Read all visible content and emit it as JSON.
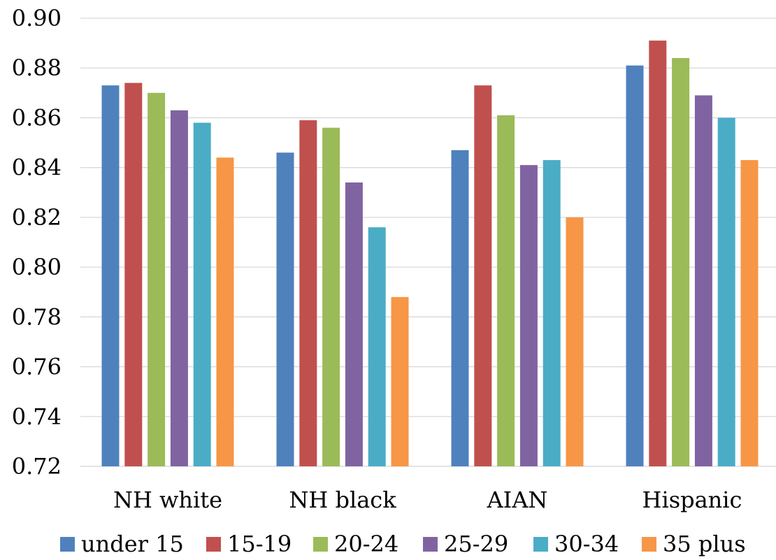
{
  "chart_data": {
    "type": "bar",
    "title": "",
    "xlabel": "",
    "ylabel": "",
    "categories": [
      "NH white",
      "NH black",
      "AIAN",
      "Hispanic"
    ],
    "series": [
      {
        "name": "under 15",
        "color": "#4F81BD",
        "values": [
          0.873,
          0.846,
          0.847,
          0.881
        ]
      },
      {
        "name": "15-19",
        "color": "#C0504D",
        "values": [
          0.874,
          0.859,
          0.873,
          0.891
        ]
      },
      {
        "name": "20-24",
        "color": "#9BBB59",
        "values": [
          0.87,
          0.856,
          0.861,
          0.884
        ]
      },
      {
        "name": "25-29",
        "color": "#8064A2",
        "values": [
          0.863,
          0.834,
          0.841,
          0.869
        ]
      },
      {
        "name": "30-34",
        "color": "#4BACC6",
        "values": [
          0.858,
          0.816,
          0.843,
          0.86
        ]
      },
      {
        "name": "35 plus",
        "color": "#F79646",
        "values": [
          0.844,
          0.788,
          0.82,
          0.843
        ]
      }
    ],
    "ylim": [
      0.72,
      0.9
    ],
    "yticks": [
      "0.72",
      "0.74",
      "0.76",
      "0.78",
      "0.80",
      "0.82",
      "0.84",
      "0.86",
      "0.88",
      "0.90"
    ],
    "grid": true,
    "legend": "bottom"
  }
}
